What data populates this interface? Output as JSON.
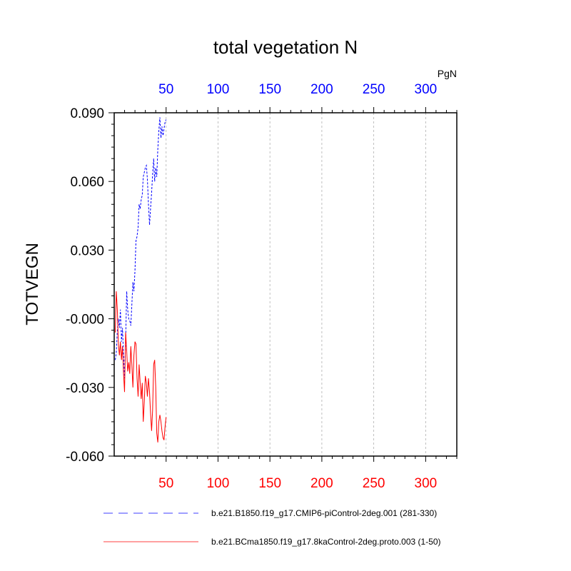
{
  "chart_data": {
    "type": "line",
    "title": "total vegetation N",
    "ylabel": "TOTVEGN",
    "units": "PgN",
    "xlim": [
      0,
      330
    ],
    "ylim": [
      -0.06,
      0.09
    ],
    "x_ticks": [
      50,
      100,
      150,
      200,
      250,
      300
    ],
    "y_ticks": [
      0.09,
      0.06,
      0.03,
      0.0,
      -0.03,
      -0.06
    ],
    "y_tick_labels": [
      "0.090",
      "0.060",
      "0.030",
      "-0.000",
      "-0.030",
      "-0.060"
    ],
    "top_axis_color": "#0000ff",
    "bottom_axis_color": "#ff0000",
    "grid": "vertical dashed at x ticks",
    "series": [
      {
        "name": "b.e21.B1850.f19_g17.CMIP6-piControl-2deg.001 (281-330)",
        "color": "#0000ff",
        "style": "dashed",
        "x": [
          1,
          2,
          3,
          4,
          5,
          6,
          7,
          8,
          9,
          10,
          11,
          12,
          13,
          14,
          15,
          16,
          17,
          18,
          19,
          20,
          21,
          22,
          23,
          24,
          25,
          26,
          27,
          28,
          29,
          30,
          31,
          32,
          33,
          34,
          35,
          36,
          37,
          38,
          39,
          40,
          41,
          42,
          43,
          44,
          45,
          46,
          47,
          48,
          49,
          50
        ],
        "values": [
          -0.018,
          -0.015,
          -0.005,
          0.0,
          -0.004,
          0.004,
          -0.01,
          -0.004,
          -0.016,
          -0.026,
          -0.01,
          0.012,
          0.004,
          0.0,
          -0.001,
          -0.003,
          0.006,
          0.016,
          0.012,
          0.021,
          0.034,
          0.036,
          0.04,
          0.05,
          0.048,
          0.052,
          0.054,
          0.062,
          0.064,
          0.066,
          0.067,
          0.061,
          0.05,
          0.041,
          0.048,
          0.055,
          0.063,
          0.07,
          0.06,
          0.066,
          0.062,
          0.074,
          0.082,
          0.088,
          0.079,
          0.084,
          0.08,
          0.083,
          0.086,
          0.087
        ]
      },
      {
        "name": "b.e21.BCma1850.f19_g17.8kaControl-2deg.proto.003 (1-50)",
        "color": "#ff0000",
        "style": "solid",
        "x": [
          1,
          2,
          3,
          4,
          5,
          6,
          7,
          8,
          9,
          10,
          11,
          12,
          13,
          14,
          15,
          16,
          17,
          18,
          19,
          20,
          21,
          22,
          23,
          24,
          25,
          26,
          27,
          28,
          29,
          30,
          31,
          32,
          33,
          34,
          35,
          36,
          37,
          38,
          39,
          40,
          41,
          42,
          43,
          44,
          45,
          46,
          47,
          48,
          49,
          50
        ],
        "values": [
          -0.006,
          0.012,
          0.004,
          -0.011,
          -0.016,
          -0.01,
          -0.018,
          -0.012,
          -0.024,
          -0.032,
          -0.006,
          -0.014,
          -0.023,
          -0.019,
          -0.024,
          -0.012,
          -0.02,
          -0.03,
          -0.016,
          -0.01,
          -0.011,
          -0.026,
          -0.034,
          -0.02,
          -0.028,
          -0.035,
          -0.028,
          -0.045,
          -0.036,
          -0.025,
          -0.028,
          -0.034,
          -0.026,
          -0.032,
          -0.041,
          -0.049,
          -0.04,
          -0.02,
          -0.018,
          -0.03,
          -0.05,
          -0.054,
          -0.045,
          -0.042,
          -0.045,
          -0.049,
          -0.052,
          -0.053,
          -0.047,
          -0.043
        ]
      }
    ]
  }
}
